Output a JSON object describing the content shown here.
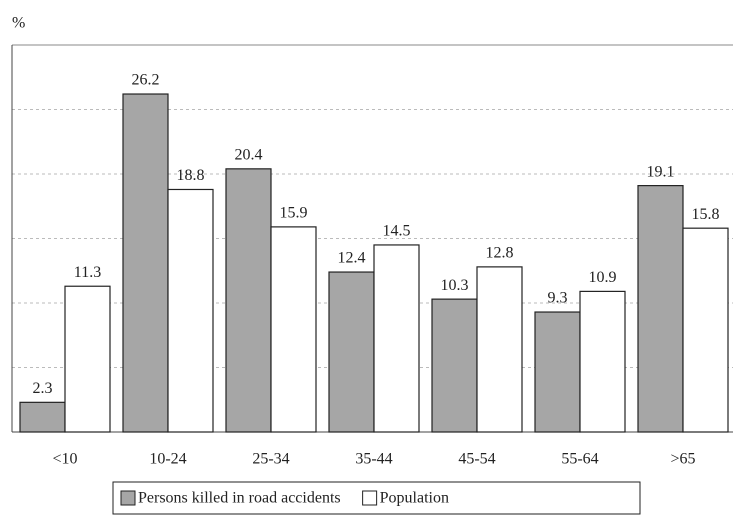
{
  "chart_data": {
    "type": "bar",
    "y_label": "%",
    "categories": [
      "<10",
      "10-24",
      "25-34",
      "35-44",
      "45-54",
      "55-64",
      ">65"
    ],
    "series": [
      {
        "name": "Persons killed in road accidents",
        "color": "#a6a6a6",
        "values": [
          2.3,
          26.2,
          20.4,
          12.4,
          10.3,
          9.3,
          19.1
        ]
      },
      {
        "name": "Population",
        "color": "#ffffff",
        "values": [
          11.3,
          18.8,
          15.9,
          14.5,
          12.8,
          10.9,
          15.8
        ]
      }
    ],
    "ylim": [
      0,
      30
    ],
    "yticks": [
      5,
      10,
      15,
      20,
      25
    ],
    "grid": true,
    "legend": "bottom"
  }
}
